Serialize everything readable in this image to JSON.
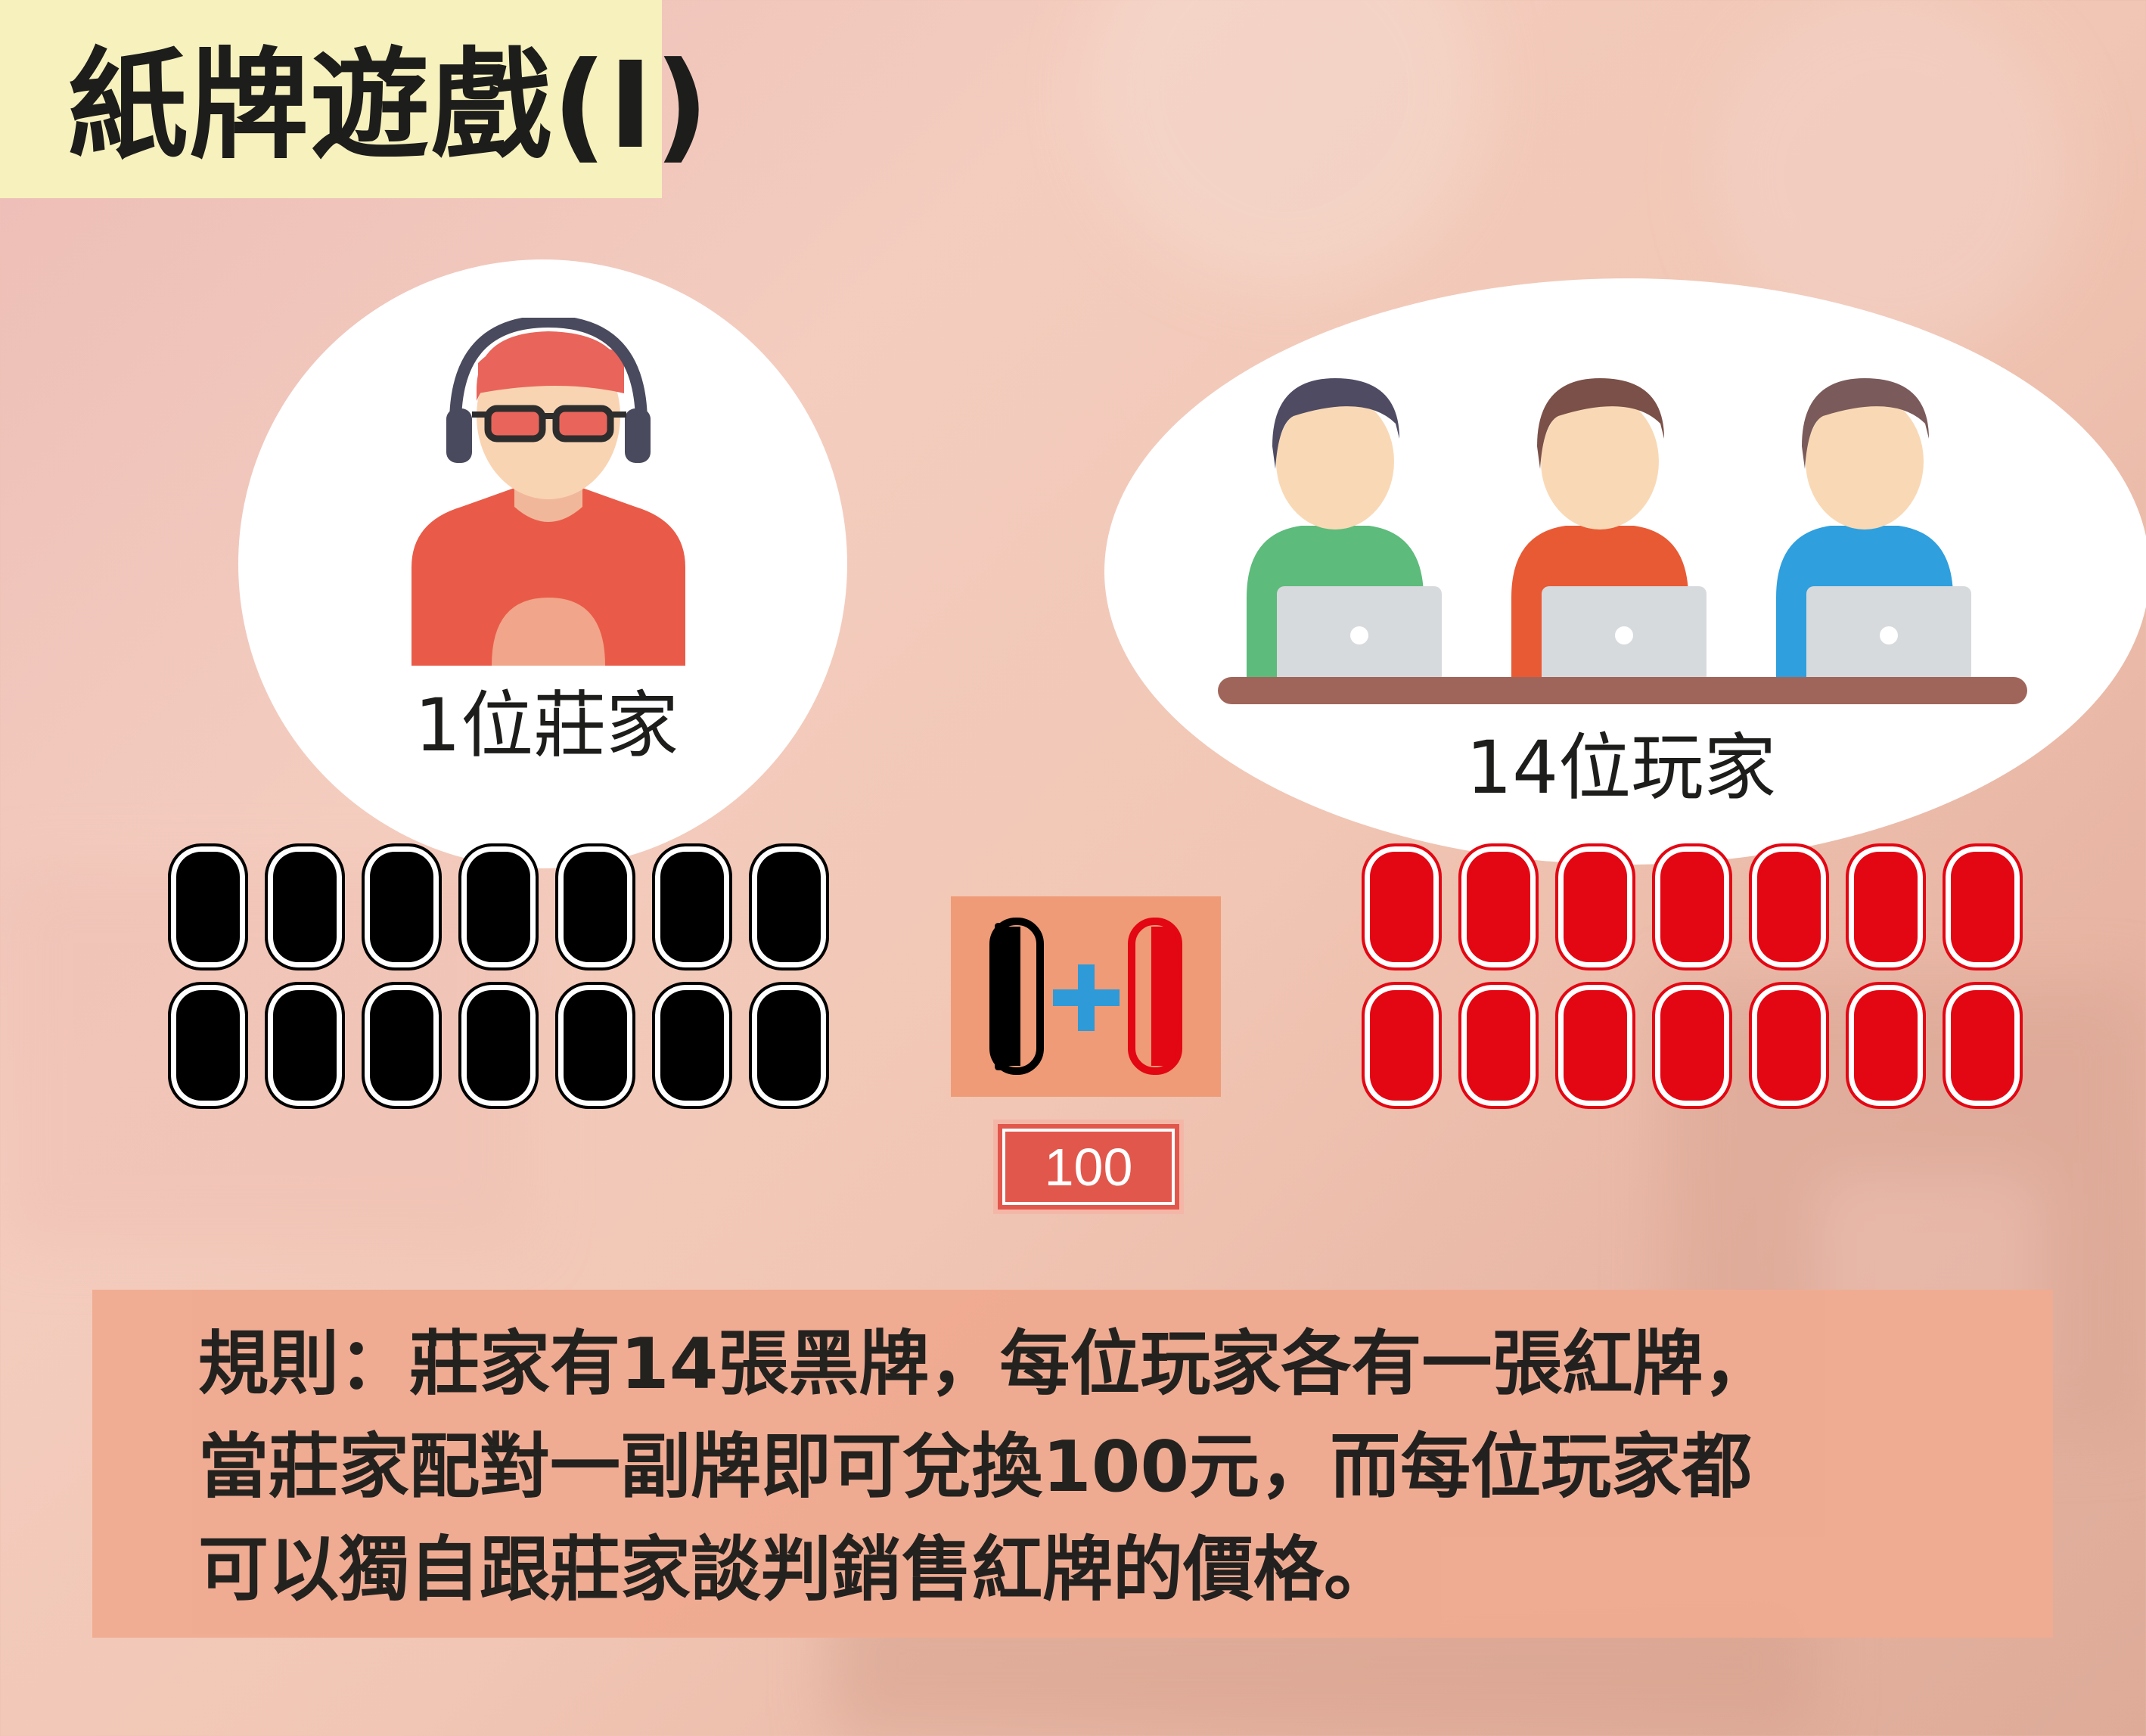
{
  "title": "紙牌遊戲(I)",
  "dealer": {
    "label": "1位莊家",
    "icon": "dealer-headphones-icon",
    "cards_count": 14,
    "card_color": "#000000"
  },
  "players": {
    "label": "14位玩家",
    "icon": "players-laptops-icon",
    "cards_count": 14,
    "card_color": "#e30613"
  },
  "pair": {
    "icon": "black-red-card-pair-icon",
    "price": "100"
  },
  "rules": {
    "lines": [
      "規則：莊家有14張黑牌，每位玩家各有一張紅牌，",
      "當莊家配對一副牌即可兌換100元，而每位玩家都",
      "可以獨自跟莊家談判銷售紅牌的價格。"
    ]
  },
  "colors": {
    "title_bg": "#f6f1bd",
    "pair_bg": "#ef9b77",
    "price_bg": "#e2574c",
    "rules_bg": "#f0ab92",
    "plus": "#2e9ad8"
  }
}
